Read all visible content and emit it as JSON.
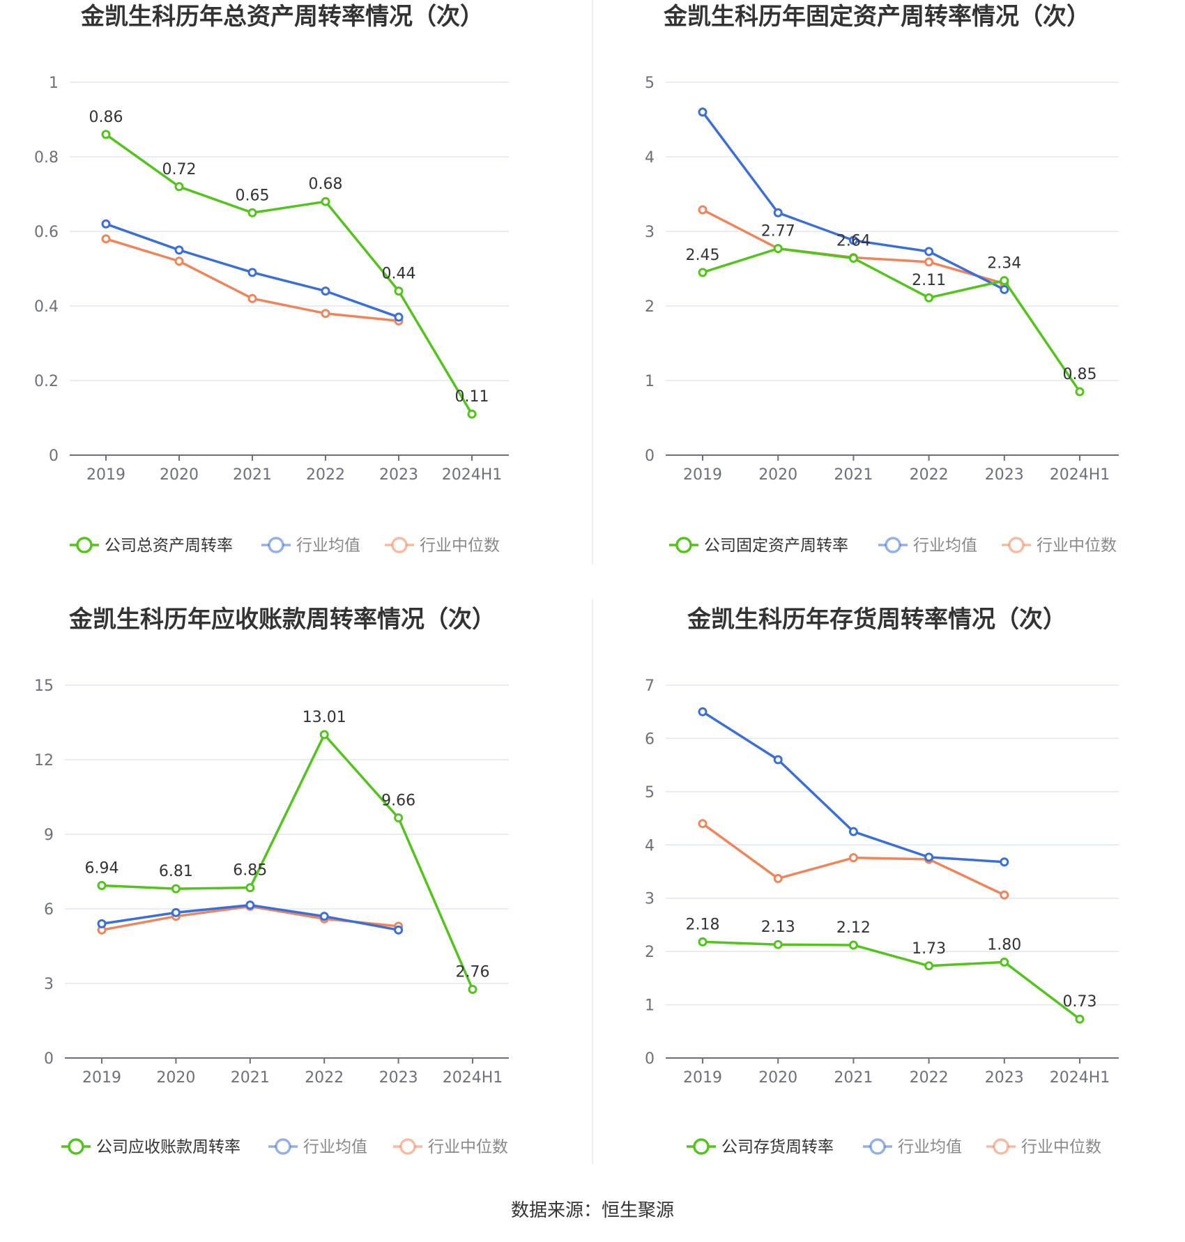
{
  "colors": {
    "company": "#52c41a",
    "avg": "#3b6fd8",
    "median": "#f0845a",
    "grid": "#e0e6f1",
    "axis": "#6e7079"
  },
  "legend": {
    "avg_label": "行业均值",
    "median_label": "行业中位数"
  },
  "source": "数据来源：恒生聚源",
  "chart_data": [
    {
      "type": "line",
      "title": "金凯生科历年总资产周转率情况（次）",
      "categories": [
        "2019",
        "2020",
        "2021",
        "2022",
        "2023",
        "2024H1"
      ],
      "ylim": [
        0,
        1
      ],
      "yticks": [
        "0",
        "0.2",
        "0.4",
        "0.6",
        "0.8",
        "1"
      ],
      "ytick_values": [
        0,
        0.2,
        0.4,
        0.6,
        0.8,
        1
      ],
      "legend_position": "bottom",
      "series": [
        {
          "name": "公司总资产周转率",
          "role": "company",
          "values": [
            0.86,
            0.72,
            0.65,
            0.68,
            0.44,
            0.11
          ],
          "labels": [
            "0.86",
            "0.72",
            "0.65",
            "0.68",
            "0.44",
            "0.11"
          ]
        },
        {
          "name": "行业均值",
          "role": "avg",
          "values": [
            0.62,
            0.55,
            0.49,
            0.44,
            0.37,
            null
          ]
        },
        {
          "name": "行业中位数",
          "role": "median",
          "values": [
            0.58,
            0.52,
            0.42,
            0.38,
            0.36,
            null
          ]
        }
      ]
    },
    {
      "type": "line",
      "title": "金凯生科历年固定资产周转率情况（次）",
      "categories": [
        "2019",
        "2020",
        "2021",
        "2022",
        "2023",
        "2024H1"
      ],
      "ylim": [
        0,
        5
      ],
      "yticks": [
        "0",
        "1",
        "2",
        "3",
        "4",
        "5"
      ],
      "ytick_values": [
        0,
        1,
        2,
        3,
        4,
        5
      ],
      "legend_position": "bottom",
      "series": [
        {
          "name": "公司固定资产周转率",
          "role": "company",
          "values": [
            2.45,
            2.77,
            2.64,
            2.11,
            2.34,
            0.85
          ],
          "labels": [
            "2.45",
            "2.77",
            "2.64",
            "2.11",
            "2.34",
            "0.85"
          ]
        },
        {
          "name": "行业均值",
          "role": "avg",
          "values": [
            4.6,
            3.25,
            2.88,
            2.73,
            2.22,
            null
          ]
        },
        {
          "name": "行业中位数",
          "role": "median",
          "values": [
            3.29,
            2.77,
            2.65,
            2.59,
            2.3,
            null
          ]
        }
      ]
    },
    {
      "type": "line",
      "title": "金凯生科历年应收账款周转率情况（次）",
      "categories": [
        "2019",
        "2020",
        "2021",
        "2022",
        "2023",
        "2024H1"
      ],
      "ylim": [
        0,
        15
      ],
      "yticks": [
        "0",
        "3",
        "6",
        "9",
        "12",
        "15"
      ],
      "ytick_values": [
        0,
        3,
        6,
        9,
        12,
        15
      ],
      "legend_position": "bottom",
      "series": [
        {
          "name": "公司应收账款周转率",
          "role": "company",
          "values": [
            6.94,
            6.81,
            6.85,
            13.01,
            9.66,
            2.76
          ],
          "labels": [
            "6.94",
            "6.81",
            "6.85",
            "13.01",
            "9.66",
            "2.76"
          ]
        },
        {
          "name": "行业均值",
          "role": "avg",
          "values": [
            5.4,
            5.85,
            6.15,
            5.7,
            5.15,
            null
          ]
        },
        {
          "name": "行业中位数",
          "role": "median",
          "values": [
            5.15,
            5.7,
            6.1,
            5.6,
            5.3,
            null
          ]
        }
      ]
    },
    {
      "type": "line",
      "title": "金凯生科历年存货周转率情况（次）",
      "categories": [
        "2019",
        "2020",
        "2021",
        "2022",
        "2023",
        "2024H1"
      ],
      "ylim": [
        0,
        7
      ],
      "yticks": [
        "0",
        "1",
        "2",
        "3",
        "4",
        "5",
        "6",
        "7"
      ],
      "ytick_values": [
        0,
        1,
        2,
        3,
        4,
        5,
        6,
        7
      ],
      "legend_position": "bottom",
      "series": [
        {
          "name": "公司存货周转率",
          "role": "company",
          "values": [
            2.18,
            2.13,
            2.12,
            1.73,
            1.8,
            0.73
          ],
          "labels": [
            "2.18",
            "2.13",
            "2.12",
            "1.73",
            "1.80",
            "0.73"
          ]
        },
        {
          "name": "行业均值",
          "role": "avg",
          "values": [
            6.5,
            5.6,
            4.25,
            3.77,
            3.68,
            null
          ]
        },
        {
          "name": "行业中位数",
          "role": "median",
          "values": [
            4.4,
            3.37,
            3.76,
            3.73,
            3.06,
            null
          ]
        }
      ]
    }
  ]
}
